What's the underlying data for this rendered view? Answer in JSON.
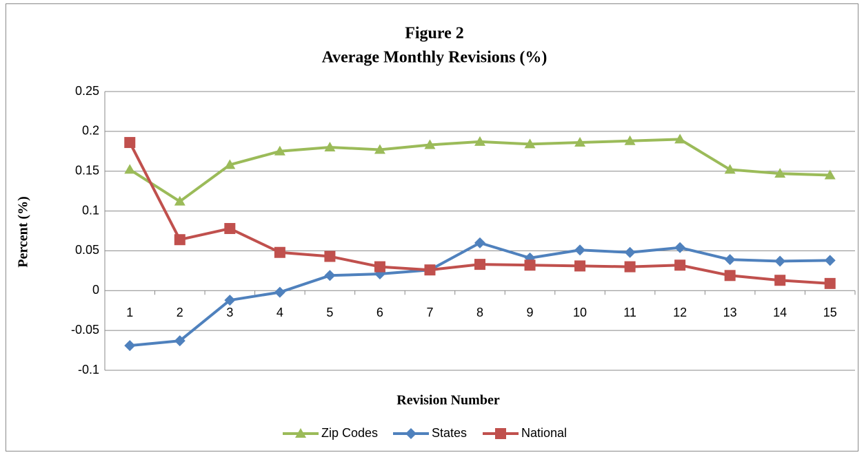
{
  "chart_data": {
    "type": "line",
    "title": "Figure 2",
    "subtitle": "Average Monthly Revisions (%)",
    "x_label": "Revision Number",
    "y_label": "Percent (%)",
    "categories": [
      "1",
      "2",
      "3",
      "4",
      "5",
      "6",
      "7",
      "8",
      "9",
      "10",
      "11",
      "12",
      "13",
      "14",
      "15"
    ],
    "series": [
      {
        "name": "Zip Codes",
        "color": "#9bbb59",
        "marker": "triangle",
        "values": [
          0.152,
          0.112,
          0.158,
          0.175,
          0.18,
          0.177,
          0.183,
          0.187,
          0.184,
          0.186,
          0.188,
          0.19,
          0.152,
          0.147,
          0.145
        ]
      },
      {
        "name": "States",
        "color": "#4f81bd",
        "marker": "diamond",
        "values": [
          -0.069,
          -0.063,
          -0.012,
          -0.002,
          0.019,
          0.021,
          0.026,
          0.06,
          0.041,
          0.051,
          0.048,
          0.054,
          0.039,
          0.037,
          0.038
        ]
      },
      {
        "name": "National",
        "color": "#c0504d",
        "marker": "square",
        "values": [
          0.186,
          0.064,
          0.078,
          0.048,
          0.043,
          0.03,
          0.026,
          0.033,
          0.032,
          0.031,
          0.03,
          0.032,
          0.019,
          0.013,
          0.009
        ]
      }
    ],
    "ylim": [
      -0.1,
      0.25
    ],
    "yticks": [
      -0.1,
      -0.05,
      0,
      0.05,
      0.1,
      0.15,
      0.2,
      0.25
    ],
    "grid": true,
    "legend": "bottom"
  }
}
